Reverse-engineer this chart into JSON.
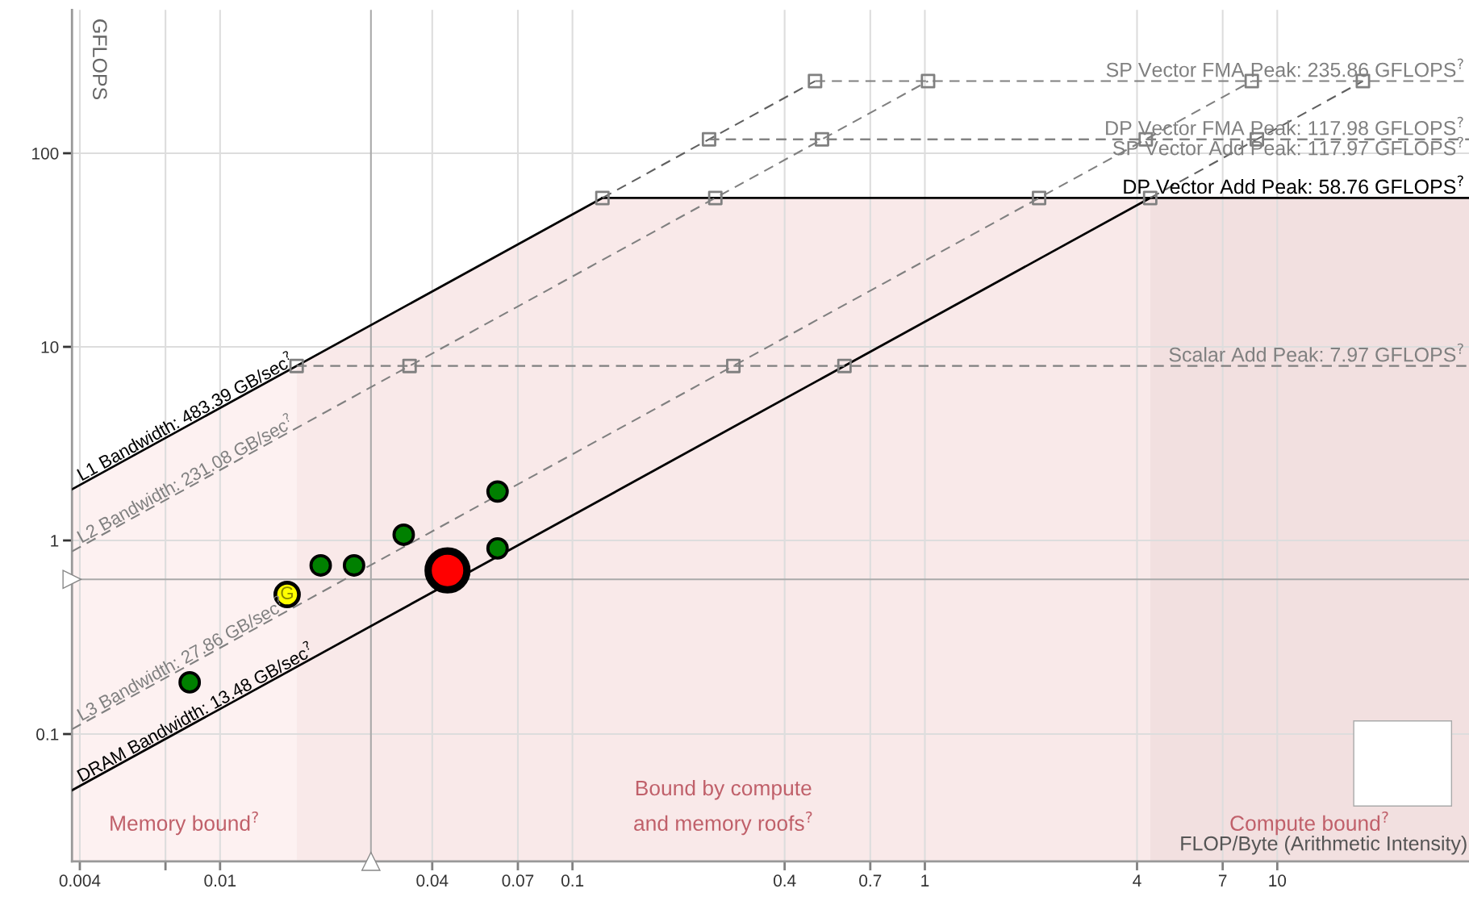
{
  "chart_data": {
    "type": "line",
    "xlabel": "FLOP/Byte (Arithmetic Intensity)",
    "ylabel": "GFLOPS",
    "log": "xy",
    "xlim": [
      0.0038,
      35
    ],
    "ylim": [
      0.022,
      550
    ],
    "xticks": [
      0.004,
      {
        "value": 0.007,
        "label": null
      },
      0.01,
      0.04,
      0.07,
      0.1,
      0.4,
      0.7,
      1,
      4,
      7,
      10
    ],
    "yticks": [
      0.1,
      1,
      10,
      100
    ],
    "grid": true,
    "series": [
      {
        "name": "L1 Bandwidth: 483.39 GB/sec$^{?}$",
        "color": "#000000",
        "line_style": "solid",
        "x": [
          0.0038,
          0.1216
        ],
        "values": [
          1.837,
          58.76
        ]
      },
      {
        "name": "DP Vector Add Peak: 58.76 GFLOPS$^{?}$",
        "color": "#000000",
        "line_style": "solid",
        "x": [
          0.1216,
          35
        ],
        "values": [
          58.76,
          58.76
        ]
      },
      {
        "name": "DRAM Bandwidth: 13.48 GB/sec$^{?}$",
        "color": "#000000",
        "line_style": "solid",
        "x": [
          0.0038,
          4.359
        ],
        "values": [
          0.0512,
          58.76
        ]
      },
      {
        "name": "L2 Bandwidth: 231.08 GB/sec$^{?}$",
        "color": "#808080",
        "line_style": "dashed",
        "x": [
          0.0038,
          1.021
        ],
        "values": [
          0.878,
          235.86
        ]
      },
      {
        "name": "L3 Bandwidth: 27.86 GB/sec$^{?}$",
        "color": "#808080",
        "line_style": "dashed",
        "x": [
          0.0038,
          8.466
        ],
        "values": [
          0.1059,
          235.86
        ]
      },
      {
        "color": "#606060",
        "line_style": "dashed",
        "x": [
          0.1216,
          0.4879
        ],
        "values": [
          58.76,
          235.86
        ]
      },
      {
        "color": "#606060",
        "line_style": "dashed",
        "x": [
          4.359,
          17.5
        ],
        "values": [
          58.76,
          235.86
        ]
      },
      {
        "name": "SP Vector FMA Peak: 235.86 GFLOPS$^{?}$",
        "color": "#808080",
        "line_style": "dashed",
        "x": [
          0.4879,
          35
        ],
        "values": [
          235.86,
          235.86
        ]
      },
      {
        "name": "DP Vector FMA Peak: 117.98 GFLOPS$^{?}$",
        "color": "#808080",
        "line_style": "dashed",
        "x": [
          0.2441,
          35
        ],
        "values": [
          117.98,
          117.98
        ]
      },
      {
        "name": "SP Vector Add Peak: 117.97 GFLOPS$^{?}$",
        "color": "#808080",
        "line_style": "dashed",
        "x": [
          0.244,
          35
        ],
        "values": [
          117.97,
          117.97
        ]
      },
      {
        "name": "Scalar Add Peak: 7.97 GFLOPS$^{?}$",
        "color": "#808080",
        "line_style": "dashed",
        "x": [
          0.01649,
          35
        ],
        "values": [
          7.97,
          7.97
        ]
      },
      {
        "type": "scatter",
        "marker": "square",
        "color": "#808080",
        "x": [
          0.01649,
          0.03449,
          0.2861,
          0.5913,
          0.1216,
          0.2543,
          2.109,
          4.359,
          0.2441,
          0.5106,
          4.235,
          8.752,
          0.4879,
          1.021,
          8.466,
          17.5
        ],
        "values": [
          7.97,
          7.97,
          7.97,
          7.97,
          58.76,
          58.76,
          58.76,
          58.76,
          117.98,
          117.98,
          117.98,
          117.98,
          235.86,
          235.86,
          235.86,
          235.86
        ]
      },
      {
        "type": "bubble",
        "marker": "circle",
        "color": "#008000",
        "x": [
          0.0082,
          0.0193,
          0.024,
          0.0332,
          0.0613,
          0.0613
        ],
        "values": [
          0.185,
          0.743,
          0.743,
          1.07,
          1.79,
          0.91
        ],
        "sizes": [
          0.25,
          0.25,
          0.25,
          0.25,
          0.25,
          0.25
        ]
      },
      {
        "type": "bubble",
        "marker": "circle",
        "color": "#ffff00",
        "x": [
          0.0155
        ],
        "values": [
          0.526
        ],
        "sizes": [
          0.37
        ],
        "value_labels": [
          "G"
        ]
      },
      {
        "type": "bubble",
        "marker": "circle",
        "color": "#ff0000",
        "x": [
          0.0442
        ],
        "values": [
          0.7
        ],
        "sizes": [
          1
        ]
      }
    ],
    "bands": [
      {
        "axis": "x",
        "from": 0.0038,
        "to": 0.01649,
        "label": "Memory bound$^{?}$",
        "color": "#fdf1f1"
      },
      {
        "axis": "x",
        "from": 0.01649,
        "to": 4.359,
        "label": "Bound by compute\nand memory roofs$^{?}$",
        "color": "#f9e9e9"
      },
      {
        "axis": "x",
        "from": 4.359,
        "to": 35,
        "label": "Compute bound$^{?}$",
        "color": "#f2e0e0"
      }
    ],
    "ref_lines": [
      {
        "axis": "x",
        "value": 0.0268,
        "color": "#aaaaaa"
      },
      {
        "axis": "y",
        "value": 0.63,
        "color": "#aaaaaa"
      }
    ]
  }
}
